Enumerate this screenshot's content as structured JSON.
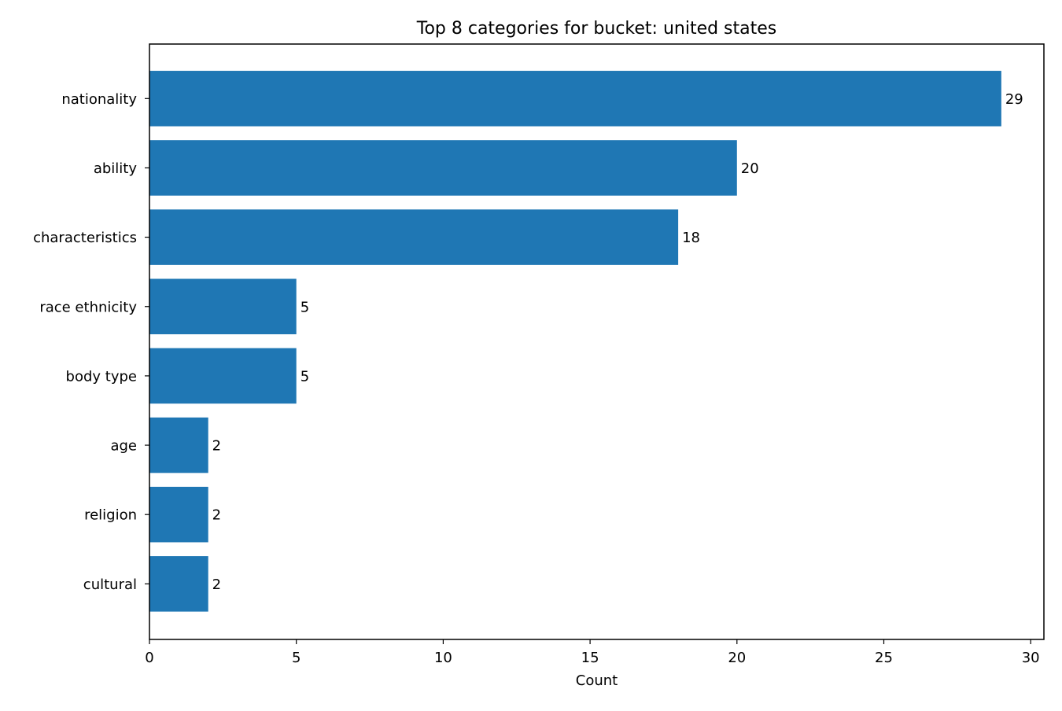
{
  "chart_data": {
    "type": "bar",
    "orientation": "horizontal",
    "title": "Top 8 categories for bucket: united states",
    "xlabel": "Count",
    "ylabel": "",
    "categories": [
      "nationality",
      "ability",
      "characteristics",
      "race ethnicity",
      "body type",
      "age",
      "religion",
      "cultural"
    ],
    "values": [
      29,
      20,
      18,
      5,
      5,
      2,
      2,
      2
    ],
    "data_labels": [
      "29",
      "20",
      "18",
      "5",
      "5",
      "2",
      "2",
      "2"
    ],
    "xlim": [
      0,
      30.45
    ],
    "xticks": [
      0,
      5,
      10,
      15,
      20,
      25,
      30
    ],
    "xtick_labels": [
      "0",
      "5",
      "10",
      "15",
      "20",
      "25",
      "30"
    ],
    "grid": false,
    "legend": "none",
    "bar_color": "#1f77b4"
  }
}
